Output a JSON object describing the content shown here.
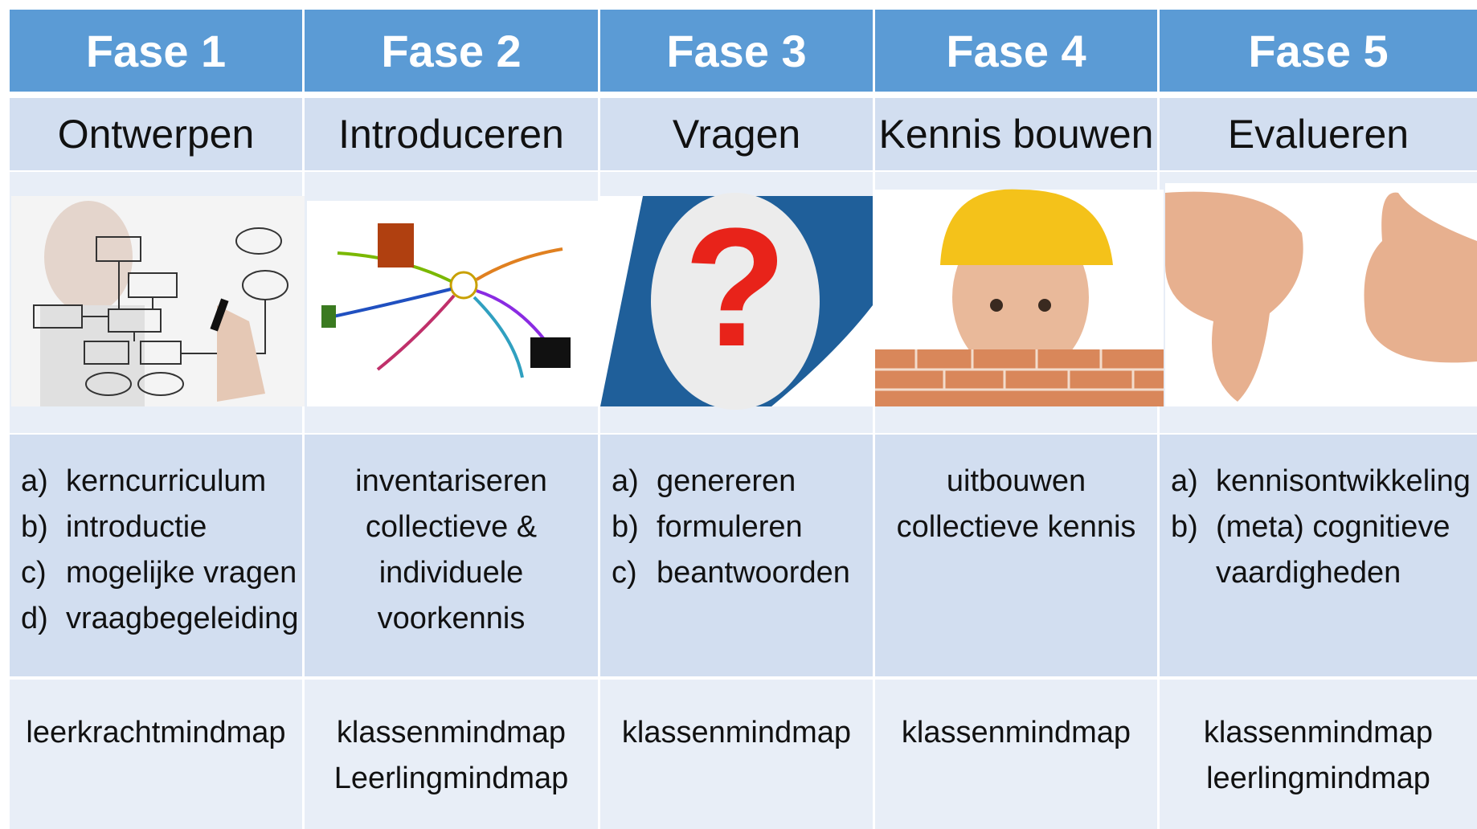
{
  "columns": [
    {
      "phase": "Fase 1",
      "title": "Ontwerpen",
      "items": [
        {
          "marker": "a)",
          "text": "kerncurriculum"
        },
        {
          "marker": "b)",
          "text": "introductie"
        },
        {
          "marker": "c)",
          "text": "mogelijke vragen"
        },
        {
          "marker": "d)",
          "text": "vraagbegeleiding"
        }
      ],
      "maps": [
        "leerkrachtmindmap"
      ]
    },
    {
      "phase": "Fase 2",
      "title": "Introduceren",
      "lines": [
        "inventariseren",
        "collectieve &",
        "individuele",
        "voorkennis"
      ],
      "maps": [
        "klassenmindmap",
        "Leerlingmindmap"
      ]
    },
    {
      "phase": "Fase 3",
      "title": "Vragen",
      "items": [
        {
          "marker": "a)",
          "text": "genereren"
        },
        {
          "marker": "b)",
          "text": "formuleren"
        },
        {
          "marker": "c)",
          "text": "beantwoorden"
        }
      ],
      "maps": [
        "klassenmindmap"
      ]
    },
    {
      "phase": "Fase 4",
      "title": "Kennis bouwen",
      "lines": [
        "uitbouwen",
        "collectieve kennis"
      ],
      "maps": [
        "klassenmindmap"
      ]
    },
    {
      "phase": "Fase 5",
      "title": "Evalueren",
      "items": [
        {
          "marker": "a)",
          "text": "kennisontwikkeling"
        },
        {
          "marker": "b)",
          "text": "(meta) cognitieve"
        },
        {
          "text": "vaardigheden"
        }
      ],
      "maps": [
        "klassenmindmap",
        "leerlingmindmap"
      ]
    }
  ]
}
